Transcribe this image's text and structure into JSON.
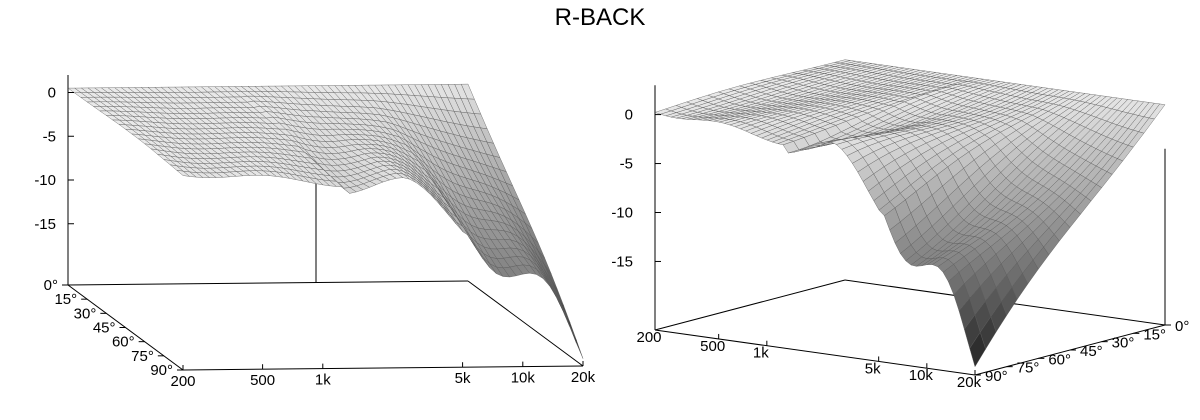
{
  "title": "R-BACK",
  "colors": {
    "background": "#ffffff",
    "axis": "#000000",
    "surface_light": "#f2f2f2",
    "surface_dark": "#1e1e1e",
    "mesh": "#555555"
  },
  "chart_data": [
    {
      "type": "surface3d",
      "view": "left",
      "x_axis": {
        "label": "",
        "ticks": [
          "200",
          "500",
          "1k",
          "5k",
          "10k",
          "20k"
        ],
        "range_hz": [
          200,
          20000
        ],
        "scale": "log"
      },
      "y_axis": {
        "label": "",
        "ticks": [
          "0°",
          "15°",
          "30°",
          "45°",
          "60°",
          "75°",
          "90°"
        ],
        "range_deg": [
          0,
          90
        ]
      },
      "z_axis": {
        "label": "",
        "ticks": [
          "0",
          "-5",
          "-10",
          "-15"
        ],
        "range_db": [
          -22,
          2
        ]
      },
      "description_values": {
        "low_freq_level_db": 0,
        "high_freq_90deg_level_db": -22
      }
    },
    {
      "type": "surface3d",
      "view": "right",
      "x_axis": {
        "label": "",
        "ticks": [
          "200",
          "500",
          "1k",
          "5k",
          "10k",
          "20k"
        ],
        "range_hz": [
          200,
          20000
        ],
        "scale": "log"
      },
      "y_axis": {
        "label": "",
        "ticks": [
          "0°",
          "15°",
          "30°",
          "45°",
          "60°",
          "75°",
          "90°"
        ],
        "range_deg": [
          0,
          90
        ]
      },
      "z_axis": {
        "label": "",
        "ticks": [
          "0",
          "-5",
          "-10",
          "-15"
        ],
        "range_db": [
          -22,
          2
        ]
      }
    }
  ]
}
